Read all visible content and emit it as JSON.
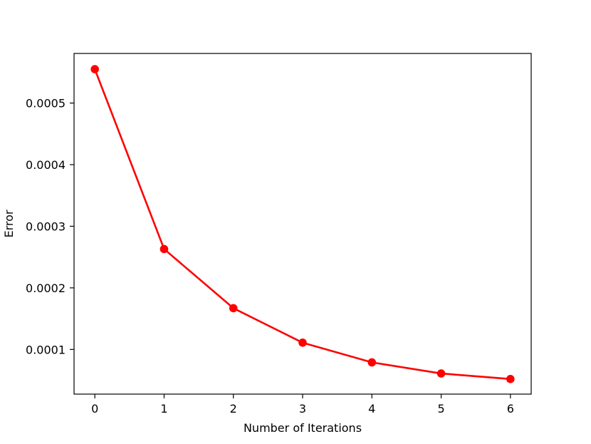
{
  "chart_data": {
    "type": "line",
    "title": "",
    "xlabel": "Number of Iterations",
    "ylabel": "Error",
    "x": [
      0,
      1,
      2,
      3,
      4,
      5,
      6
    ],
    "series": [
      {
        "values": [
          0.000555,
          0.000263,
          0.000167,
          0.000111,
          7.9e-05,
          6.1e-05,
          5.2e-05
        ],
        "color": "#ff0000",
        "marker": "circle"
      }
    ],
    "xlim": [
      -0.3,
      6.3
    ],
    "ylim": [
      2.75e-05,
      0.0005805
    ],
    "xticks": [
      0,
      1,
      2,
      3,
      4,
      5,
      6
    ],
    "xtick_labels": [
      "0",
      "1",
      "2",
      "3",
      "4",
      "5",
      "6"
    ],
    "yticks": [
      0.0001,
      0.0002,
      0.0003,
      0.0004,
      0.0005
    ],
    "ytick_labels": [
      "0.0001",
      "0.0002",
      "0.0003",
      "0.0004",
      "0.0005"
    ],
    "grid": false,
    "legend": "none"
  }
}
